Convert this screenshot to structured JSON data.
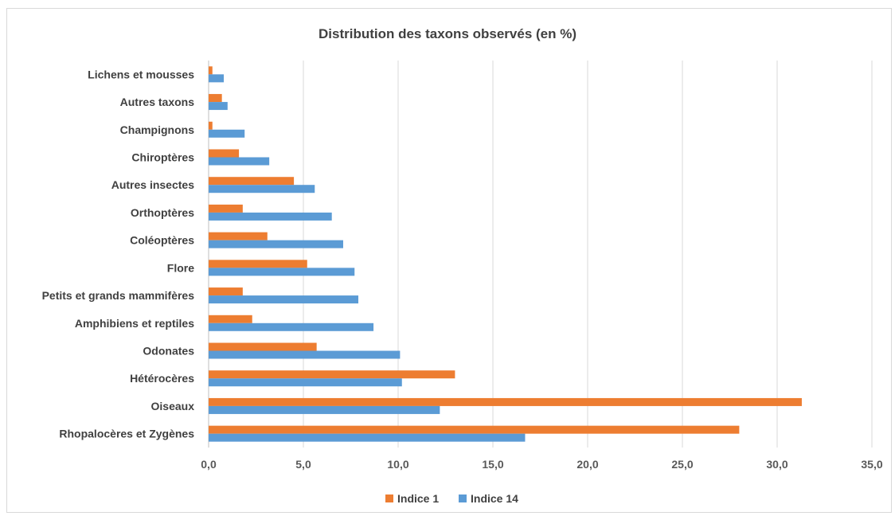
{
  "chart_data": {
    "type": "bar",
    "orientation": "horizontal",
    "title": "Distribution des taxons observés (en %)",
    "xlabel": "",
    "ylabel": "",
    "xlim": [
      0,
      35
    ],
    "x_ticks": [
      "0,0",
      "5,0",
      "10,0",
      "15,0",
      "20,0",
      "25,0",
      "30,0",
      "35,0"
    ],
    "grid": true,
    "legend_position": "bottom",
    "categories": [
      "Rhopalocères et Zygènes",
      "Oiseaux",
      "Hétérocères",
      "Odonates",
      "Amphibiens et reptiles",
      "Petits et grands mammifères",
      "Flore",
      "Coléoptères",
      "Orthoptères",
      "Autres insectes",
      "Chiroptères",
      "Champignons",
      "Autres taxons",
      "Lichens et mousses"
    ],
    "series": [
      {
        "name": "Indice 1",
        "color": "#ED7D31",
        "values": [
          28.0,
          31.3,
          13.0,
          5.7,
          2.3,
          1.8,
          5.2,
          3.1,
          1.8,
          4.5,
          1.6,
          0.2,
          0.7,
          0.2
        ]
      },
      {
        "name": "Indice 14",
        "color": "#5B9BD5",
        "values": [
          16.7,
          12.2,
          10.2,
          10.1,
          8.7,
          7.9,
          7.7,
          7.1,
          6.5,
          5.6,
          3.2,
          1.9,
          1.0,
          0.8
        ]
      }
    ]
  }
}
